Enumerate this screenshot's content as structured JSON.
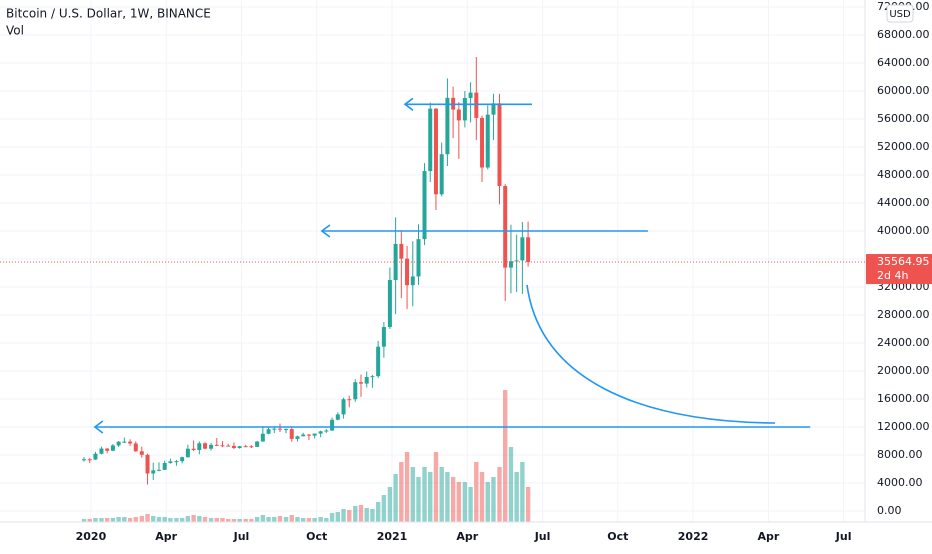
{
  "chart_data": {
    "type": "candlestick",
    "title": "Bitcoin / U.S. Dollar, 1W, BINANCE",
    "volume_label": "Vol",
    "currency": "USD",
    "countdown": "2d 4h",
    "up_color": "#26a69a",
    "down_color": "#ef5350",
    "line_color": "#2196f3",
    "grid": true,
    "xlim": [
      2019.698,
      2022.571
    ],
    "xticks": [
      {
        "value": 2020,
        "label": "2020"
      },
      {
        "value": 2020.25,
        "label": "Apr"
      },
      {
        "value": 2020.5,
        "label": "Jul"
      },
      {
        "value": 2020.75,
        "label": "Oct"
      },
      {
        "value": 2021,
        "label": "2021"
      },
      {
        "value": 2021.25,
        "label": "Apr"
      },
      {
        "value": 2021.5,
        "label": "Jul"
      },
      {
        "value": 2021.75,
        "label": "Oct"
      },
      {
        "value": 2022,
        "label": "2022"
      },
      {
        "value": 2022.25,
        "label": "Apr"
      },
      {
        "value": 2022.5,
        "label": "Jul"
      }
    ],
    "ylim": [
      -1571,
      73000
    ],
    "yticks": [
      {
        "value": 0,
        "label": "0.00"
      },
      {
        "value": 4000,
        "label": "4000.00"
      },
      {
        "value": 8000,
        "label": "8000.00"
      },
      {
        "value": 12000,
        "label": "12000.00"
      },
      {
        "value": 16000,
        "label": "16000.00"
      },
      {
        "value": 20000,
        "label": "20000.00"
      },
      {
        "value": 24000,
        "label": "24000.00"
      },
      {
        "value": 28000,
        "label": "28000.00"
      },
      {
        "value": 32000,
        "label": "32000.00"
      },
      {
        "value": 36000,
        "label": "36000.00"
      },
      {
        "value": 40000,
        "label": "40000.00"
      },
      {
        "value": 44000,
        "label": "44000.00"
      },
      {
        "value": 48000,
        "label": "48000.00"
      },
      {
        "value": 52000,
        "label": "52000.00"
      },
      {
        "value": 56000,
        "label": "56000.00"
      },
      {
        "value": 60000,
        "label": "60000.00"
      },
      {
        "value": 64000,
        "label": "64000.00"
      },
      {
        "value": 68000,
        "label": "68000.00"
      },
      {
        "value": 72000,
        "label": "72000.00"
      }
    ],
    "vlim": [
      0,
      1540000
    ],
    "x": [
      2019.977,
      2019.996,
      2020.015,
      2020.035,
      2020.054,
      2020.073,
      2020.092,
      2020.111,
      2020.13,
      2020.149,
      2020.169,
      2020.188,
      2020.207,
      2020.226,
      2020.245,
      2020.264,
      2020.284,
      2020.303,
      2020.322,
      2020.341,
      2020.36,
      2020.379,
      2020.399,
      2020.418,
      2020.437,
      2020.456,
      2020.475,
      2020.494,
      2020.514,
      2020.533,
      2020.552,
      2020.571,
      2020.59,
      2020.609,
      2020.628,
      2020.648,
      2020.667,
      2020.686,
      2020.705,
      2020.724,
      2020.743,
      2020.763,
      2020.782,
      2020.801,
      2020.82,
      2020.839,
      2020.858,
      2020.878,
      2020.897,
      2020.916,
      2020.935,
      2020.954,
      2020.973,
      2020.993,
      2021.012,
      2021.031,
      2021.05,
      2021.069,
      2021.088,
      2021.108,
      2021.127,
      2021.146,
      2021.165,
      2021.184,
      2021.203,
      2021.222,
      2021.242,
      2021.261,
      2021.28,
      2021.299,
      2021.318,
      2021.337,
      2021.357,
      2021.376,
      2021.395,
      2021.414,
      2021.433,
      2021.452
    ],
    "open": [
      7260,
      7390,
      7350,
      8180,
      8920,
      8600,
      9370,
      9900,
      9910,
      9650,
      8530,
      8030,
      5360,
      5810,
      5880,
      6860,
      7090,
      7120,
      7690,
      8900,
      8720,
      9680,
      8900,
      9450,
      9380,
      9340,
      9300,
      9000,
      9260,
      9250,
      9160,
      9930,
      11040,
      11680,
      11760,
      11660,
      11710,
      10300,
      10680,
      10920,
      10770,
      11060,
      11380,
      11500,
      13030,
      13800,
      15970,
      15960,
      18400,
      18200,
      19150,
      19260,
      23470,
      26280,
      33000,
      38150,
      36050,
      32260,
      33510,
      38840,
      48560,
      57480,
      45240,
      50970,
      59020,
      57350,
      55800,
      59000,
      59770,
      56150,
      49070,
      56620,
      58240,
      46430,
      34770,
      35680,
      35800,
      39100
    ],
    "high": [
      7700,
      7550,
      8450,
      9190,
      8990,
      9580,
      10000,
      10500,
      10250,
      9950,
      9190,
      8180,
      6900,
      6950,
      7200,
      7470,
      7300,
      7770,
      9460,
      10070,
      9950,
      9840,
      9740,
      10430,
      9990,
      9590,
      9800,
      9300,
      9450,
      9400,
      9980,
      12120,
      11900,
      12090,
      12490,
      11810,
      12090,
      10760,
      11180,
      11000,
      11060,
      11490,
      11720,
      13350,
      14100,
      16170,
      16480,
      18820,
      19490,
      19920,
      19440,
      24300,
      27000,
      34780,
      41950,
      40100,
      37850,
      38530,
      40950,
      49700,
      58350,
      57560,
      52640,
      61800,
      60630,
      58400,
      60000,
      61250,
      64850,
      56480,
      57960,
      59600,
      59600,
      46700,
      40900,
      39480,
      41300,
      41350
    ],
    "low": [
      7050,
      6850,
      7300,
      8100,
      8240,
      8550,
      9150,
      9700,
      9300,
      8450,
      7630,
      3780,
      4440,
      5670,
      5860,
      6770,
      6460,
      6800,
      7620,
      8560,
      8110,
      8800,
      8630,
      9280,
      9110,
      9220,
      8830,
      8900,
      9110,
      9000,
      9130,
      9900,
      10960,
      11150,
      11280,
      11110,
      9880,
      9920,
      10650,
      10140,
      10370,
      10540,
      11160,
      11420,
      12970,
      13200,
      14800,
      15600,
      16300,
      17650,
      17600,
      19000,
      21900,
      26000,
      28130,
      30420,
      28850,
      29240,
      32300,
      37990,
      47000,
      43000,
      44950,
      49280,
      53270,
      50300,
      54800,
      55500,
      53000,
      47000,
      48800,
      53000,
      43800,
      30000,
      31100,
      31300,
      31000,
      34900
    ],
    "close": [
      7390,
      7350,
      8180,
      8920,
      8600,
      9370,
      9900,
      9910,
      9650,
      8530,
      8030,
      5360,
      5810,
      5880,
      6860,
      7090,
      7120,
      7690,
      8900,
      8720,
      9680,
      8900,
      9450,
      9380,
      9340,
      9300,
      9000,
      9260,
      9250,
      9160,
      9930,
      11040,
      11680,
      11760,
      11660,
      11710,
      10300,
      10680,
      10920,
      10770,
      11060,
      11380,
      11500,
      13030,
      13800,
      15970,
      15960,
      18400,
      18200,
      19150,
      19260,
      23470,
      26280,
      33000,
      38150,
      36050,
      32260,
      33510,
      38840,
      48560,
      57480,
      45240,
      50970,
      59020,
      57350,
      55800,
      59000,
      59770,
      56150,
      49070,
      56620,
      58240,
      46430,
      34770,
      35680,
      35800,
      39100,
      35564.95
    ],
    "volume": [
      30000,
      30000,
      40000,
      40000,
      40000,
      40000,
      50000,
      50000,
      40000,
      50000,
      60000,
      80000,
      60000,
      50000,
      50000,
      40000,
      40000,
      40000,
      60000,
      70000,
      60000,
      50000,
      40000,
      40000,
      40000,
      30000,
      30000,
      30000,
      30000,
      30000,
      50000,
      70000,
      50000,
      50000,
      60000,
      50000,
      70000,
      50000,
      40000,
      40000,
      40000,
      50000,
      40000,
      90000,
      100000,
      130000,
      120000,
      160000,
      170000,
      140000,
      130000,
      200000,
      270000,
      350000,
      480000,
      600000,
      700000,
      550000,
      450000,
      550000,
      500000,
      700000,
      550000,
      500000,
      450000,
      400000,
      400000,
      350000,
      600000,
      500000,
      400000,
      450000,
      550000,
      1320000,
      750000,
      500000,
      600000,
      350000
    ],
    "lines": [
      {
        "y": 58100,
        "x": [
          2021.043,
          2021.465
        ]
      },
      {
        "y": 40000,
        "x": [
          2020.767,
          2021.85
        ]
      },
      {
        "y": 12000,
        "x": [
          2020.013,
          2022.389
        ]
      }
    ]
  }
}
